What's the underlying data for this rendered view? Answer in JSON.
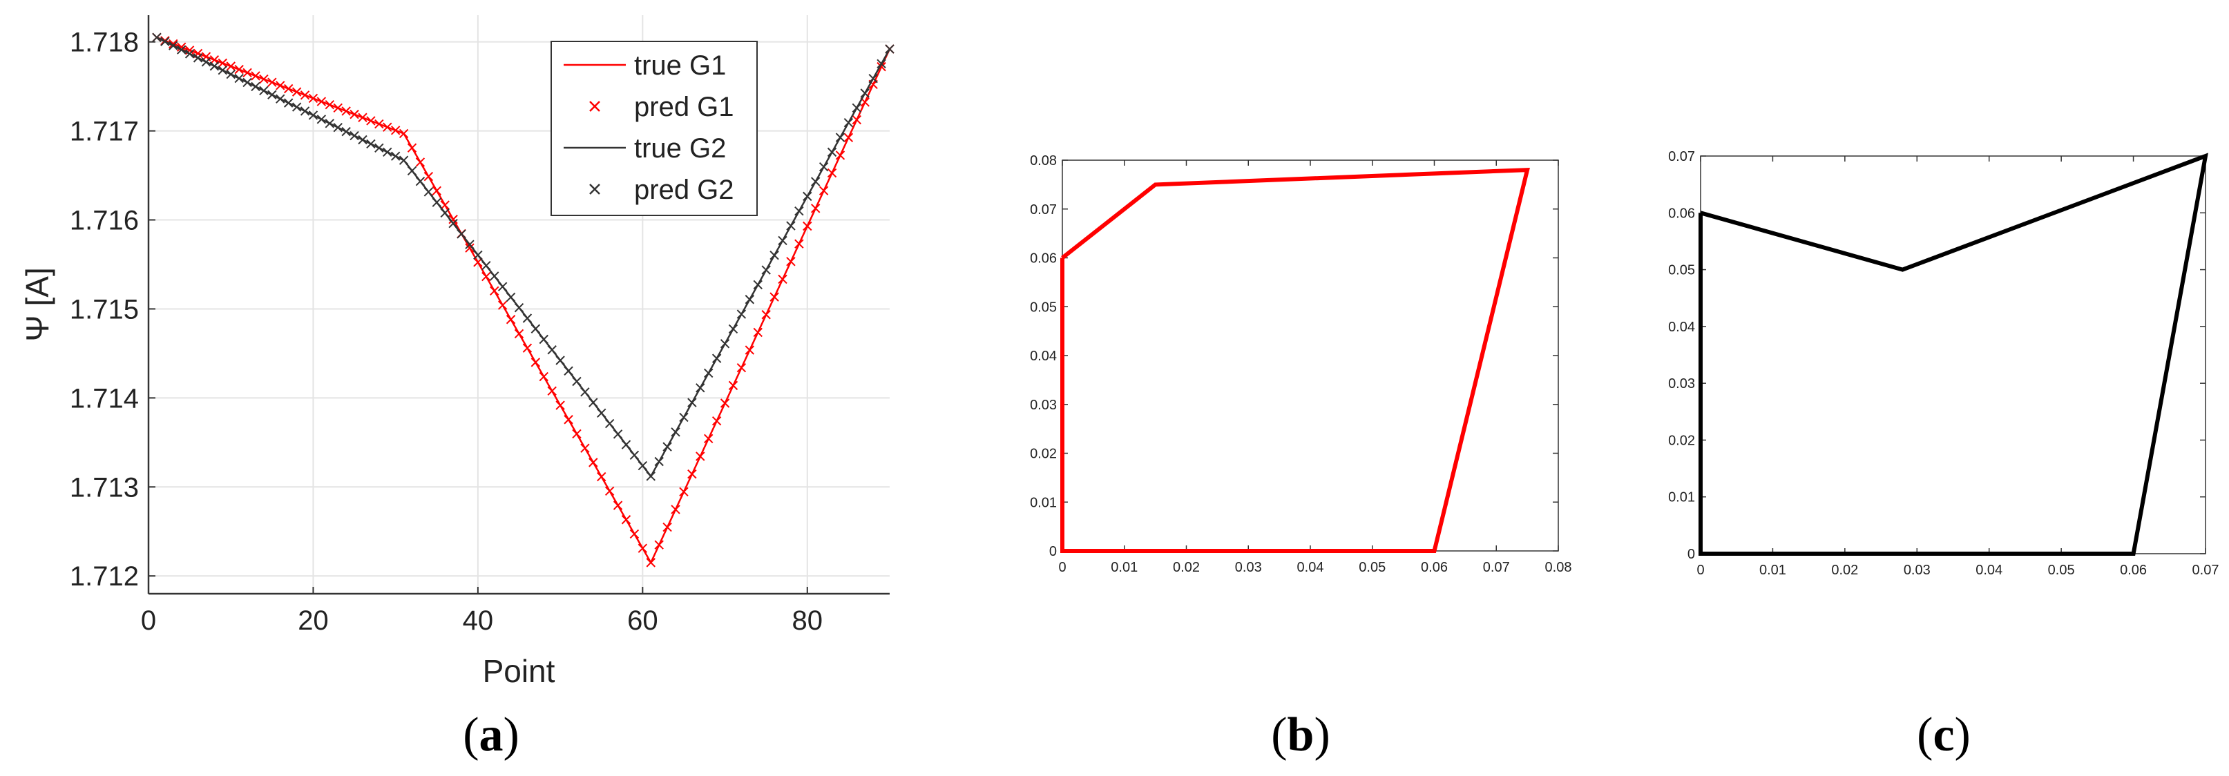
{
  "chart_data": [
    {
      "type": "line",
      "panel_label": "a",
      "xlabel": "Point",
      "ylabel": "Ψ [A]",
      "xlim": [
        0,
        90
      ],
      "ylim": [
        1.7118,
        1.7183
      ],
      "xticks": [
        0,
        20,
        40,
        60,
        80
      ],
      "yticks": [
        1.712,
        1.713,
        1.714,
        1.715,
        1.716,
        1.717,
        1.718
      ],
      "ytick_labels": [
        "1.712",
        "1.713",
        "1.714",
        "1.715",
        "1.716",
        "1.717",
        "1.718"
      ],
      "grid": true,
      "legend_position": "top-right",
      "series": [
        {
          "name": "true G1",
          "kind": "line",
          "color": "#ff0000",
          "breakpoints": [
            [
              1,
              1.71805
            ],
            [
              31,
              1.71697
            ],
            [
              61,
              1.71215
            ],
            [
              90,
              1.71792
            ]
          ]
        },
        {
          "name": "pred G1",
          "kind": "markers",
          "marker": "x",
          "color": "#ff0000",
          "x_range": [
            1,
            90
          ]
        },
        {
          "name": "true G2",
          "kind": "line",
          "color": "#333333",
          "breakpoints": [
            [
              1,
              1.71805
            ],
            [
              31,
              1.71667
            ],
            [
              61,
              1.71312
            ],
            [
              90,
              1.71792
            ]
          ]
        },
        {
          "name": "pred G2",
          "kind": "markers",
          "marker": "x",
          "color": "#333333",
          "x_range": [
            1,
            90
          ]
        }
      ]
    },
    {
      "type": "line",
      "panel_label": "b",
      "xlim": [
        0,
        0.08
      ],
      "ylim": [
        0,
        0.08
      ],
      "xticks": [
        0,
        0.01,
        0.02,
        0.03,
        0.04,
        0.05,
        0.06,
        0.07,
        0.08
      ],
      "xtick_labels": [
        "0",
        "0.01",
        "0.02",
        "0.03",
        "0.04",
        "0.05",
        "0.06",
        "0.07",
        "0.08"
      ],
      "yticks": [
        0,
        0.01,
        0.02,
        0.03,
        0.04,
        0.05,
        0.06,
        0.07,
        0.08
      ],
      "ytick_labels": [
        "0",
        "0.01",
        "0.02",
        "0.03",
        "0.04",
        "0.05",
        "0.06",
        "0.07",
        "0.08"
      ],
      "grid": false,
      "series": [
        {
          "color": "#ff0000",
          "points": [
            [
              0,
              0.06
            ],
            [
              0.015,
              0.075
            ],
            [
              0.075,
              0.078
            ],
            [
              0.06,
              0
            ],
            [
              0,
              0
            ],
            [
              0,
              0.06
            ]
          ]
        }
      ]
    },
    {
      "type": "line",
      "panel_label": "c",
      "xlim": [
        0,
        0.07
      ],
      "ylim": [
        0,
        0.07
      ],
      "xticks": [
        0,
        0.01,
        0.02,
        0.03,
        0.04,
        0.05,
        0.06,
        0.07
      ],
      "xtick_labels": [
        "0",
        "0.01",
        "0.02",
        "0.03",
        "0.04",
        "0.05",
        "0.06",
        "0.07"
      ],
      "yticks": [
        0,
        0.01,
        0.02,
        0.03,
        0.04,
        0.05,
        0.06,
        0.07
      ],
      "ytick_labels": [
        "0",
        "0.01",
        "0.02",
        "0.03",
        "0.04",
        "0.05",
        "0.06",
        "0.07"
      ],
      "grid": false,
      "series": [
        {
          "color": "#000000",
          "points": [
            [
              0,
              0.06
            ],
            [
              0.028,
              0.05
            ],
            [
              0.07,
              0.07
            ],
            [
              0.06,
              0
            ],
            [
              0,
              0
            ],
            [
              0,
              0.06
            ]
          ]
        }
      ]
    }
  ]
}
